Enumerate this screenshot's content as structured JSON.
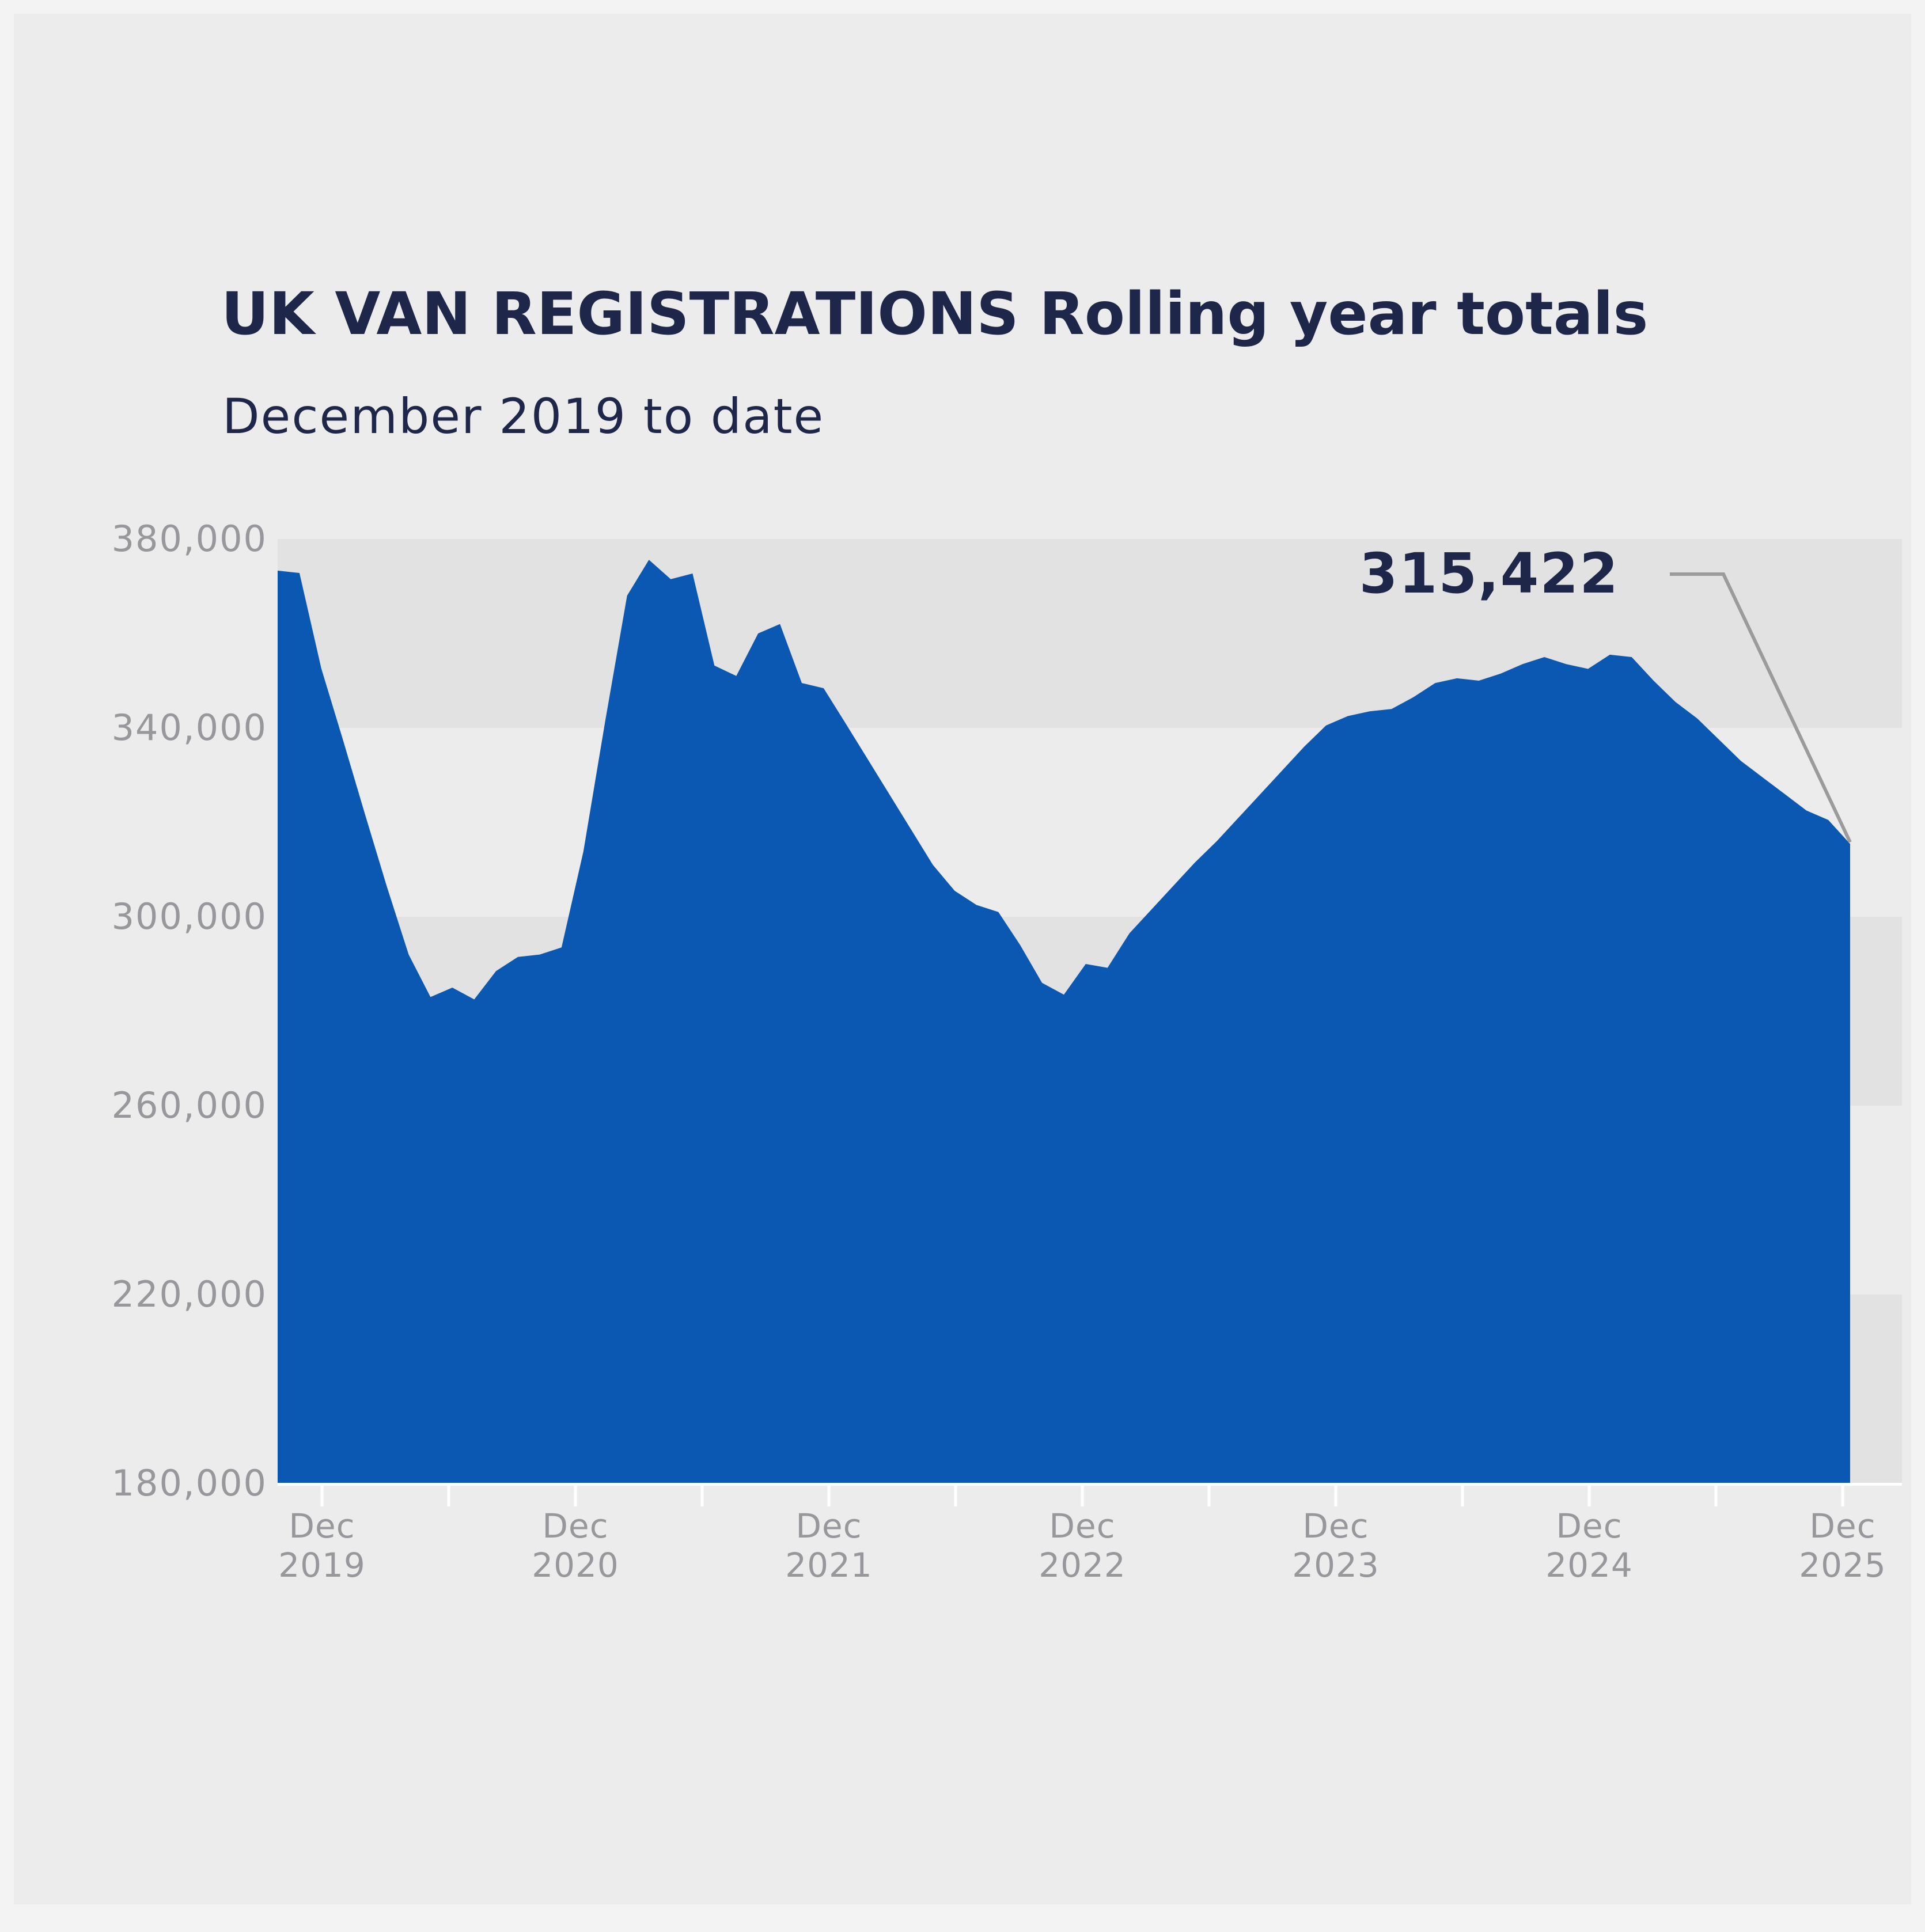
{
  "title": "UK VAN REGISTRATIONS Rolling year totals",
  "subtitle": "December 2019 to date",
  "annotation": {
    "label": "315,422",
    "value": 315422
  },
  "colors": {
    "page_bg": "#f3f3f3",
    "card_bg": "#ececec",
    "stripe": "#e2e2e2",
    "area_blue": "#0a58b2",
    "navy_text": "#1e2749",
    "axis_text": "#97979c",
    "callout_line": "#9b9b9b",
    "axis_line": "#ffffff"
  },
  "chart_data": {
    "type": "area",
    "title": "UK VAN REGISTRATIONS Rolling year totals",
    "subtitle": "December 2019 to date",
    "x_start": "2019-12",
    "x_end": "2025-12",
    "x_interval": "monthly",
    "x_tick_labels": [
      {
        "month": "Dec",
        "year": "2019"
      },
      {
        "month": "Dec",
        "year": "2020"
      },
      {
        "month": "Dec",
        "year": "2021"
      },
      {
        "month": "Dec",
        "year": "2022"
      },
      {
        "month": "Dec",
        "year": "2023"
      },
      {
        "month": "Dec",
        "year": "2024"
      },
      {
        "month": "Dec",
        "year": "2025"
      }
    ],
    "minor_ticks_every_months": 6,
    "y_ticks": [
      380000,
      340000,
      300000,
      260000,
      220000,
      180000
    ],
    "ylim": [
      180000,
      380000
    ],
    "grid": "alternating horizontal bands",
    "stripe_bands": [
      [
        340000,
        380000
      ],
      [
        260000,
        300000
      ],
      [
        180000,
        220000
      ]
    ],
    "legend": "none",
    "final_value": 315422,
    "series": [
      {
        "name": "UK van registrations rolling year total",
        "monthly_values": [
          373300,
          372800,
          352600,
          337300,
          321700,
          306400,
          292000,
          283000,
          285000,
          282500,
          288500,
          291500,
          292000,
          293500,
          313800,
          341500,
          368000,
          375600,
          371500,
          372700,
          353200,
          351000,
          360000,
          362000,
          349500,
          348400,
          341000,
          333500,
          326000,
          318500,
          311000,
          305500,
          302500,
          301000,
          294000,
          286000,
          283500,
          290000,
          289200,
          296500,
          301500,
          306500,
          311500,
          316000,
          321000,
          326000,
          331000,
          336000,
          340500,
          342500,
          343500,
          344000,
          346500,
          349500,
          350500,
          350000,
          351500,
          353500,
          355000,
          353500,
          352500,
          355500,
          355000,
          350000,
          345500,
          342000,
          337500,
          333000,
          329500,
          326000,
          322500,
          320500,
          315422
        ]
      }
    ]
  }
}
